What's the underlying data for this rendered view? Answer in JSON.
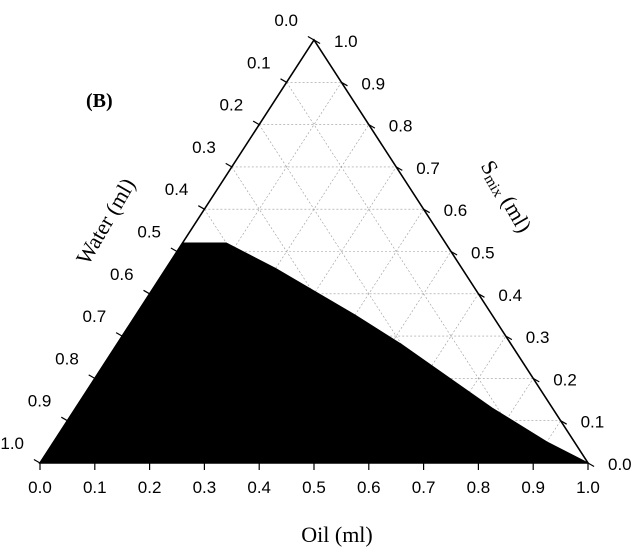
{
  "chart_data": {
    "type": "ternary",
    "panel_label": "(B)",
    "axes": {
      "bottom": {
        "title": "Oil (ml)",
        "range": [
          0,
          1
        ]
      },
      "left": {
        "title": "Water (ml)",
        "range": [
          0,
          1
        ]
      },
      "right": {
        "title_main": "S",
        "title_sub": "mix",
        "title_rest": " (ml)",
        "range": [
          0,
          1
        ]
      }
    },
    "ticks": [
      "0.0",
      "0.1",
      "0.2",
      "0.3",
      "0.4",
      "0.5",
      "0.6",
      "0.7",
      "0.8",
      "0.9",
      "1.0"
    ],
    "grid": true,
    "region_color": "#000000",
    "region": [
      {
        "oil": 0.0,
        "water": 1.0,
        "smix": 0.0
      },
      {
        "oil": 0.0,
        "water": 0.48,
        "smix": 0.52
      },
      {
        "oil": 0.08,
        "water": 0.4,
        "smix": 0.52
      },
      {
        "oil": 0.2,
        "water": 0.34,
        "smix": 0.46
      },
      {
        "oil": 0.4,
        "water": 0.25,
        "smix": 0.35
      },
      {
        "oil": 0.52,
        "water": 0.2,
        "smix": 0.28
      },
      {
        "oil": 0.76,
        "water": 0.11,
        "smix": 0.13
      },
      {
        "oil": 0.9,
        "water": 0.05,
        "smix": 0.05
      },
      {
        "oil": 1.0,
        "water": 0.0,
        "smix": 0.0
      }
    ]
  }
}
